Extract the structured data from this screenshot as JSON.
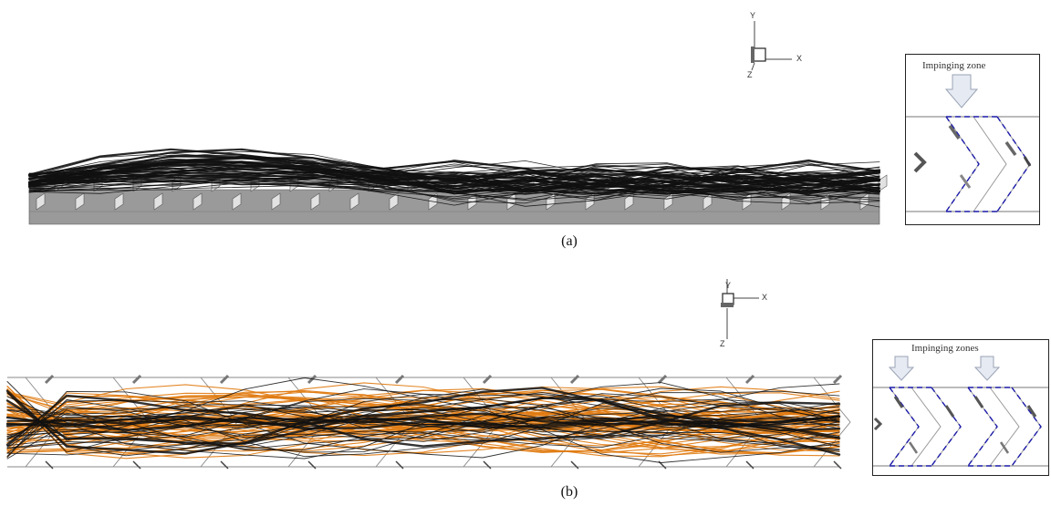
{
  "panel_a": {
    "caption": "(a)",
    "axes": {
      "y": "Y",
      "x": "X",
      "z": "Z"
    },
    "inset": {
      "title": "Impinging zone"
    }
  },
  "panel_b": {
    "caption": "(b)",
    "axes": {
      "y": "Y",
      "x": "X",
      "z": "Z"
    },
    "inset": {
      "title": "Impinging zones"
    }
  },
  "colors": {
    "streamline_dark": "#111111",
    "streamline_orange": "#e07a10",
    "plate_grey": "#9a9a9a",
    "fin_light": "#dcdcdc",
    "dash_blue": "#1a1aa8"
  }
}
